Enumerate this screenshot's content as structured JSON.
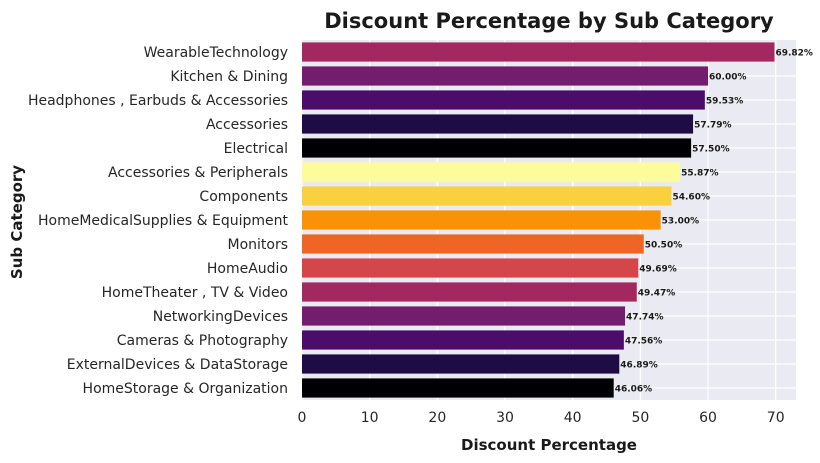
{
  "chart_data": {
    "type": "bar",
    "orientation": "horizontal",
    "title": "Discount Percentage by Sub Category",
    "xlabel": "Discount Percentage",
    "ylabel": "Sub Category",
    "xlim": [
      0,
      73
    ],
    "xticks": [
      "0",
      "10",
      "20",
      "30",
      "40",
      "50",
      "60",
      "70"
    ],
    "grid": true,
    "categories": [
      "WearableTechnology",
      "Kitchen & Dining",
      "Headphones , Earbuds & Accessories",
      "Accessories",
      "Electrical",
      "Accessories & Peripherals",
      "Components",
      "HomeMedicalSupplies & Equipment",
      "Monitors",
      "HomeAudio",
      "HomeTheater , TV & Video",
      "NetworkingDevices",
      "Cameras & Photography",
      "ExternalDevices & DataStorage",
      "HomeStorage & Organization"
    ],
    "values": [
      69.82,
      60.0,
      59.53,
      57.79,
      57.5,
      55.87,
      54.6,
      53.0,
      50.5,
      49.69,
      49.47,
      47.74,
      47.56,
      46.89,
      46.06
    ],
    "value_labels": [
      "69.82%",
      "60.00%",
      "59.53%",
      "57.79%",
      "57.50%",
      "55.87%",
      "54.60%",
      "53.00%",
      "50.50%",
      "49.69%",
      "49.47%",
      "47.74%",
      "47.56%",
      "46.89%",
      "46.06%"
    ],
    "colors": [
      "#a3285f",
      "#731e6d",
      "#4b0c6b",
      "#1e0c45",
      "#000004",
      "#fcfc9a",
      "#f9d03e",
      "#fa9208",
      "#ee6526",
      "#d5464a",
      "#a3285f",
      "#731e6d",
      "#4b0c6b",
      "#1e0c45",
      "#000004"
    ],
    "background_color": "#eaeaf2",
    "grid_color": "#ffffff"
  }
}
